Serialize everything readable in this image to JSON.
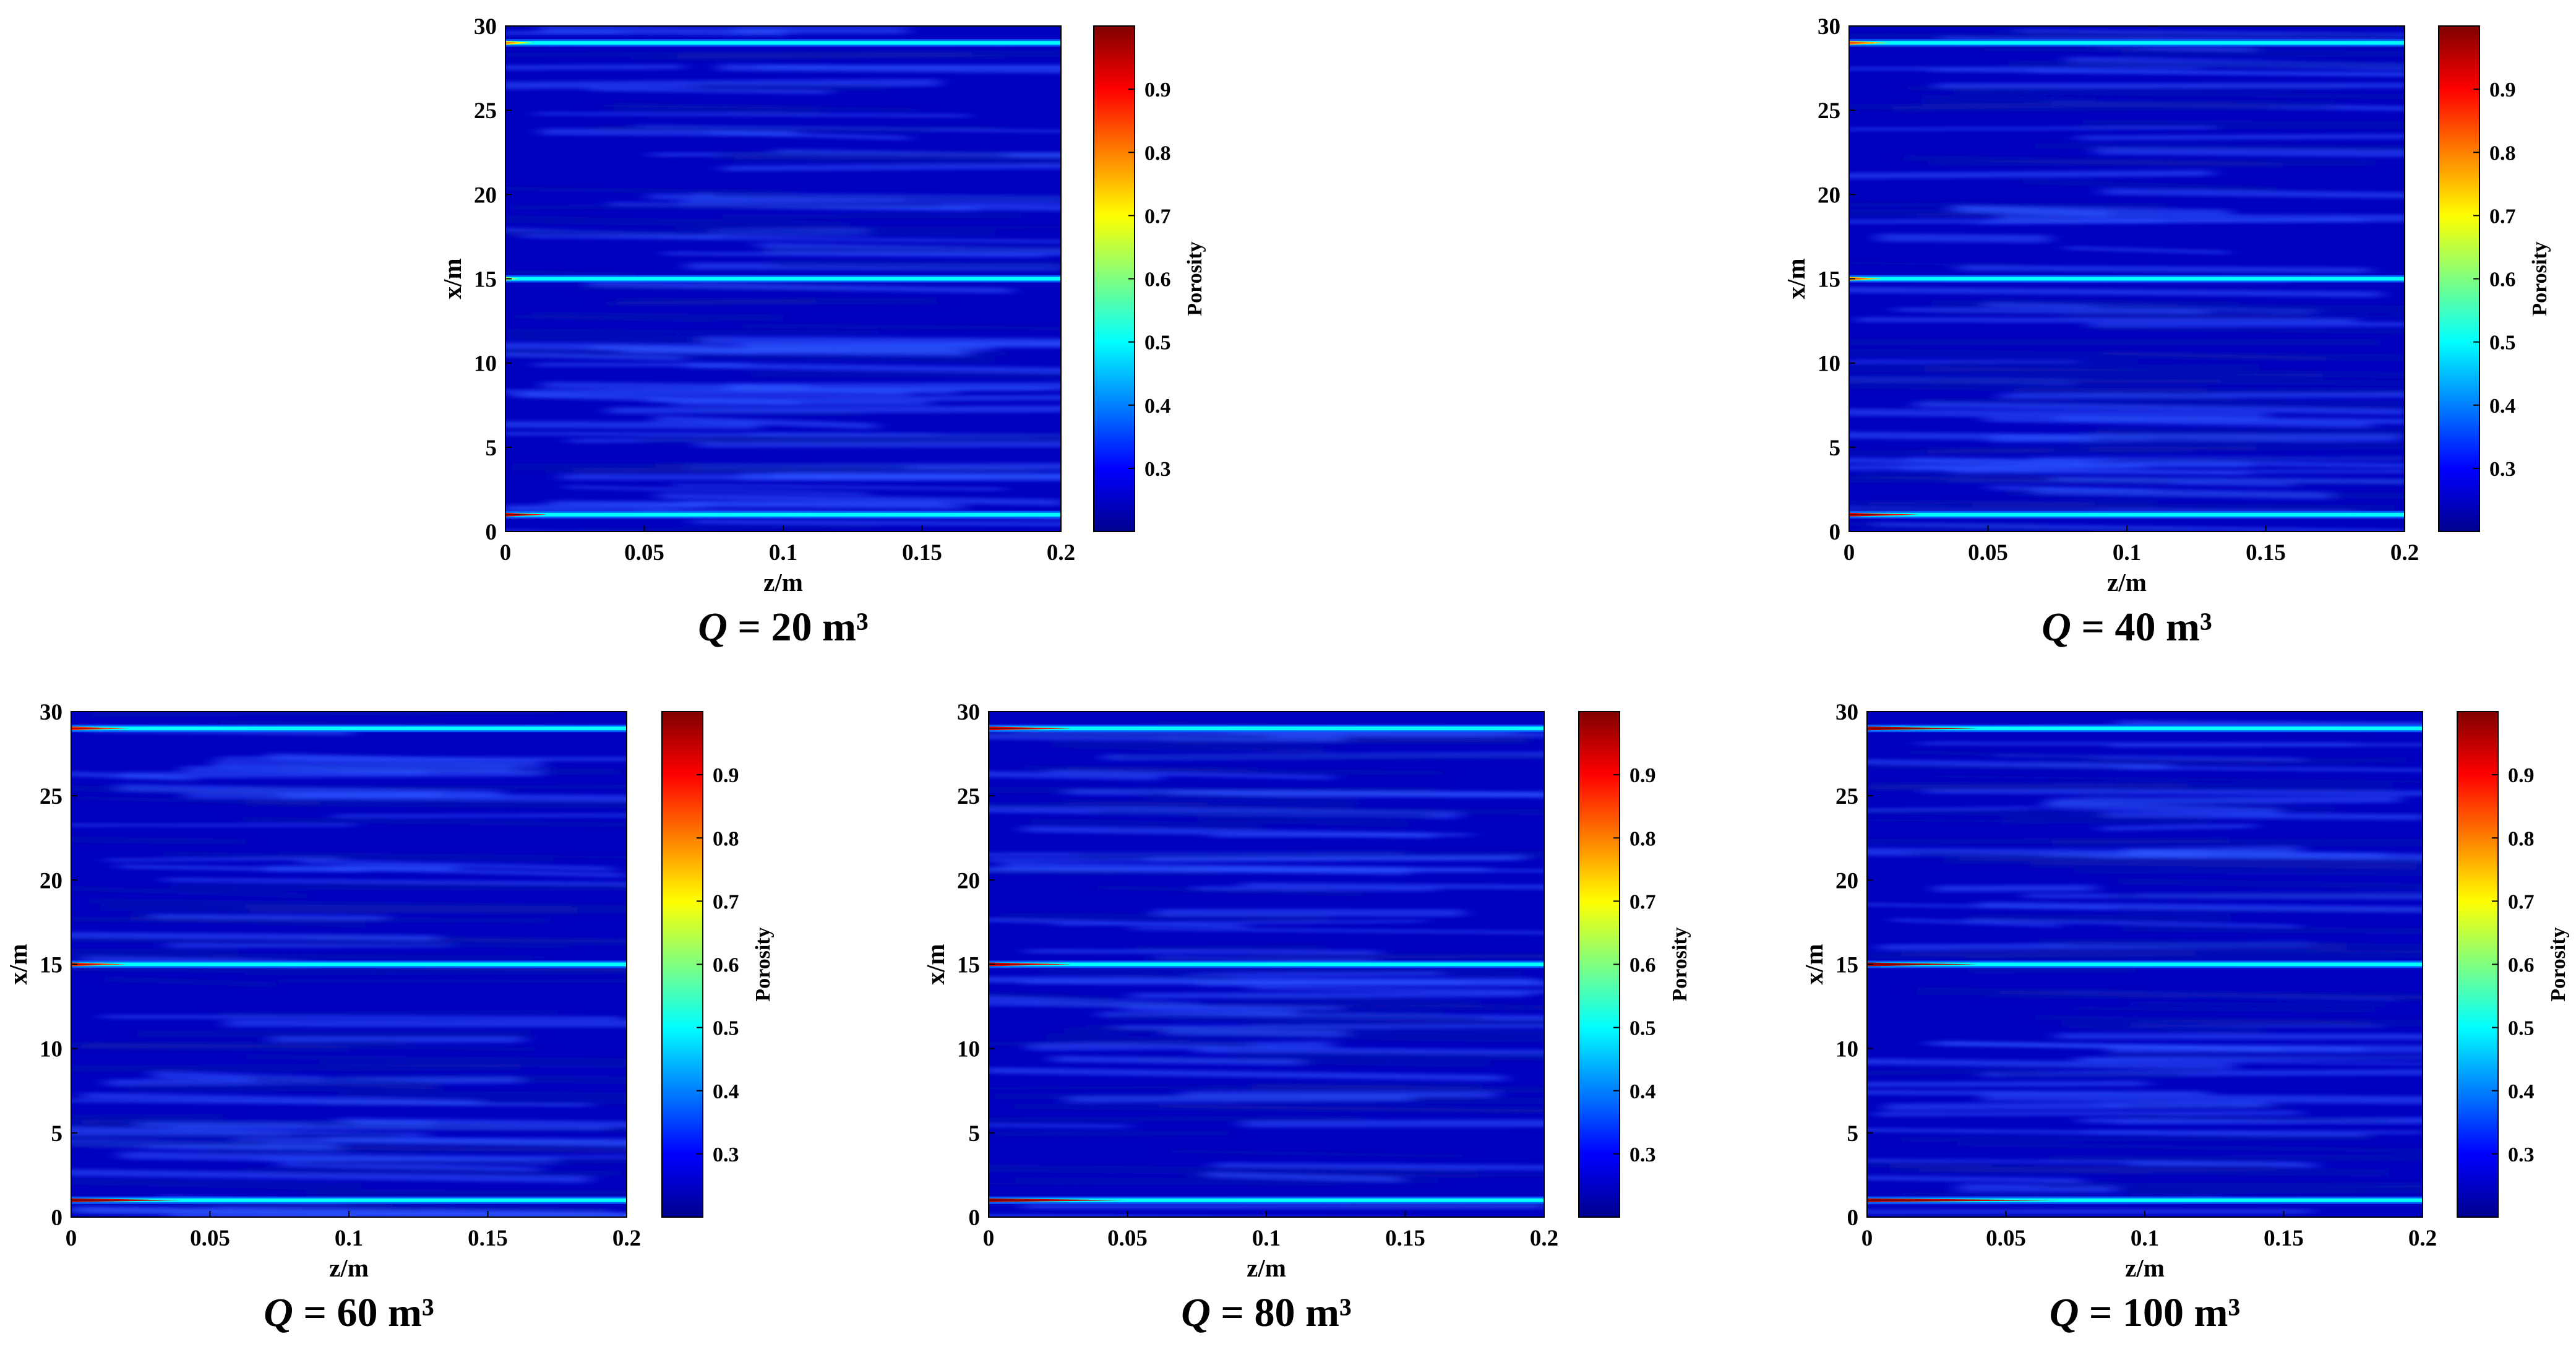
{
  "figure": {
    "description_units": "porosity field plots",
    "colormap": "jet"
  },
  "chart_data": [
    {
      "type": "heatmap",
      "caption": {
        "var": "Q",
        "text": " = 20 m³"
      },
      "xlabel": "z/m",
      "ylabel": "x/m",
      "xlim": [
        0,
        0.2
      ],
      "ylim": [
        0,
        30
      ],
      "xticks": [
        "0",
        "0.05",
        "0.1",
        "0.15",
        "0.2"
      ],
      "yticks": [
        "0",
        "5",
        "10",
        "15",
        "20",
        "25",
        "30"
      ],
      "colorbar": {
        "label": "Porosity",
        "range": [
          0.2,
          1.0
        ],
        "ticks": [
          "0.3",
          "0.4",
          "0.5",
          "0.6",
          "0.7",
          "0.8",
          "0.9"
        ]
      },
      "background_porosity": 0.25,
      "high_porosity_layers": [
        {
          "x": 29,
          "porosity": 0.5,
          "tip_porosity": 0.7,
          "tip_extent_z": 0.01
        },
        {
          "x": 15,
          "porosity": 0.5,
          "tip_porosity": 0.6,
          "tip_extent_z": 0.005
        },
        {
          "x": 1,
          "porosity": 0.5,
          "tip_porosity": 0.9,
          "tip_extent_z": 0.015
        }
      ]
    },
    {
      "type": "heatmap",
      "caption": {
        "var": "Q",
        "text": " = 40 m³"
      },
      "xlabel": "z/m",
      "ylabel": "x/m",
      "xlim": [
        0,
        0.2
      ],
      "ylim": [
        0,
        30
      ],
      "xticks": [
        "0",
        "0.05",
        "0.1",
        "0.15",
        "0.2"
      ],
      "yticks": [
        "0",
        "5",
        "10",
        "15",
        "20",
        "25",
        "30"
      ],
      "colorbar": {
        "label": "Porosity",
        "range": [
          0.2,
          1.0
        ],
        "ticks": [
          "0.3",
          "0.4",
          "0.5",
          "0.6",
          "0.7",
          "0.8",
          "0.9"
        ]
      },
      "background_porosity": 0.25,
      "high_porosity_layers": [
        {
          "x": 29,
          "porosity": 0.5,
          "tip_porosity": 0.75,
          "tip_extent_z": 0.015
        },
        {
          "x": 15,
          "porosity": 0.5,
          "tip_porosity": 0.75,
          "tip_extent_z": 0.012
        },
        {
          "x": 1,
          "porosity": 0.5,
          "tip_porosity": 0.9,
          "tip_extent_z": 0.025
        }
      ]
    },
    {
      "type": "heatmap",
      "caption": {
        "var": "Q",
        "text": " = 60 m³"
      },
      "xlabel": "z/m",
      "ylabel": "x/m",
      "xlim": [
        0,
        0.2
      ],
      "ylim": [
        0,
        30
      ],
      "xticks": [
        "0",
        "0.05",
        "0.1",
        "0.15",
        "0.2"
      ],
      "yticks": [
        "0",
        "5",
        "10",
        "15",
        "20",
        "25",
        "30"
      ],
      "colorbar": {
        "label": "Porosity",
        "range": [
          0.2,
          1.0
        ],
        "ticks": [
          "0.3",
          "0.4",
          "0.5",
          "0.6",
          "0.7",
          "0.8",
          "0.9"
        ]
      },
      "background_porosity": 0.25,
      "high_porosity_layers": [
        {
          "x": 29,
          "porosity": 0.5,
          "tip_porosity": 0.85,
          "tip_extent_z": 0.02
        },
        {
          "x": 15,
          "porosity": 0.5,
          "tip_porosity": 0.85,
          "tip_extent_z": 0.02
        },
        {
          "x": 1,
          "porosity": 0.5,
          "tip_porosity": 0.95,
          "tip_extent_z": 0.04
        }
      ]
    },
    {
      "type": "heatmap",
      "caption": {
        "var": "Q",
        "text": " = 80 m³"
      },
      "xlabel": "z/m",
      "ylabel": "x/m",
      "xlim": [
        0,
        0.2
      ],
      "ylim": [
        0,
        30
      ],
      "xticks": [
        "0",
        "0.05",
        "0.1",
        "0.15",
        "0.2"
      ],
      "yticks": [
        "0",
        "5",
        "10",
        "15",
        "20",
        "25",
        "30"
      ],
      "colorbar": {
        "label": "Porosity",
        "range": [
          0.2,
          1.0
        ],
        "ticks": [
          "0.3",
          "0.4",
          "0.5",
          "0.6",
          "0.7",
          "0.8",
          "0.9"
        ]
      },
      "background_porosity": 0.25,
      "high_porosity_layers": [
        {
          "x": 29,
          "porosity": 0.5,
          "tip_porosity": 0.9,
          "tip_extent_z": 0.03
        },
        {
          "x": 15,
          "porosity": 0.5,
          "tip_porosity": 0.9,
          "tip_extent_z": 0.03
        },
        {
          "x": 1,
          "porosity": 0.5,
          "tip_porosity": 0.95,
          "tip_extent_z": 0.05
        }
      ]
    },
    {
      "type": "heatmap",
      "caption": {
        "var": "Q",
        "text": " = 100 m³"
      },
      "xlabel": "z/m",
      "ylabel": "x/m",
      "xlim": [
        0,
        0.2
      ],
      "ylim": [
        0,
        30
      ],
      "xticks": [
        "0",
        "0.05",
        "0.1",
        "0.15",
        "0.2"
      ],
      "yticks": [
        "0",
        "5",
        "10",
        "15",
        "20",
        "25",
        "30"
      ],
      "colorbar": {
        "label": "Porosity",
        "range": [
          0.2,
          1.0
        ],
        "ticks": [
          "0.3",
          "0.4",
          "0.5",
          "0.6",
          "0.7",
          "0.8",
          "0.9"
        ]
      },
      "background_porosity": 0.25,
      "high_porosity_layers": [
        {
          "x": 29,
          "porosity": 0.5,
          "tip_porosity": 0.95,
          "tip_extent_z": 0.04
        },
        {
          "x": 15,
          "porosity": 0.5,
          "tip_porosity": 0.95,
          "tip_extent_z": 0.04
        },
        {
          "x": 1,
          "porosity": 0.5,
          "tip_porosity": 0.95,
          "tip_extent_z": 0.07
        }
      ]
    }
  ]
}
